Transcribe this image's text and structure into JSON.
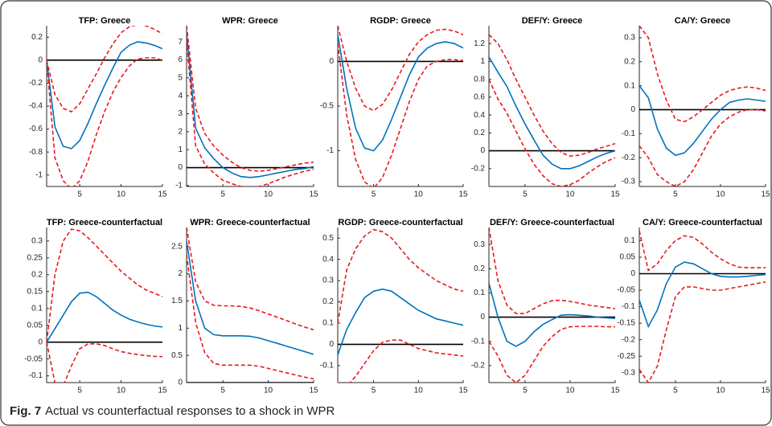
{
  "chart_data": [
    {
      "type": "line",
      "title": "TFP: Greece",
      "x": [
        1,
        2,
        3,
        4,
        5,
        6,
        7,
        8,
        9,
        10,
        11,
        12,
        13,
        14,
        15
      ],
      "xlim": [
        1,
        15
      ],
      "xticks": [
        5,
        10,
        15
      ],
      "ylim": [
        -1.1,
        0.3
      ],
      "yticks": [
        -1,
        -0.8,
        -0.6,
        -0.4,
        -0.2,
        0,
        0.2
      ],
      "reference_line": 0,
      "series": [
        {
          "color": "#0072bd",
          "dashed": false,
          "values": [
            0,
            -0.58,
            -0.75,
            -0.77,
            -0.7,
            -0.55,
            -0.38,
            -0.22,
            -0.07,
            0.07,
            0.13,
            0.16,
            0.15,
            0.13,
            0.1
          ]
        },
        {
          "color": "#e8191e",
          "dashed": true,
          "values": [
            0,
            -0.3,
            -0.42,
            -0.45,
            -0.38,
            -0.25,
            -0.12,
            0.02,
            0.14,
            0.24,
            0.29,
            0.31,
            0.3,
            0.27,
            0.23
          ]
        },
        {
          "color": "#e8191e",
          "dashed": true,
          "values": [
            0,
            -0.85,
            -1.05,
            -1.12,
            -1.05,
            -0.88,
            -0.65,
            -0.45,
            -0.28,
            -0.15,
            -0.05,
            0.01,
            0.02,
            0.02,
            0
          ]
        }
      ]
    },
    {
      "type": "line",
      "title": "WPR: Greece",
      "x": [
        1,
        2,
        3,
        4,
        5,
        6,
        7,
        8,
        9,
        10,
        11,
        12,
        13,
        14,
        15
      ],
      "xlim": [
        1,
        15
      ],
      "xticks": [
        5,
        10,
        15
      ],
      "ylim": [
        -1.05,
        7.9
      ],
      "yticks": [
        -1,
        0,
        1,
        2,
        3,
        4,
        5,
        6,
        7
      ],
      "reference_line": 0,
      "series": [
        {
          "color": "#0072bd",
          "dashed": false,
          "values": [
            7.5,
            2.2,
            1.1,
            0.5,
            0,
            -0.3,
            -0.5,
            -0.55,
            -0.5,
            -0.4,
            -0.3,
            -0.2,
            -0.1,
            -0.05,
            0.05
          ]
        },
        {
          "color": "#e8191e",
          "dashed": true,
          "values": [
            7.9,
            3.3,
            1.9,
            1.2,
            0.7,
            0.3,
            0,
            -0.15,
            -0.2,
            -0.15,
            -0.05,
            0.05,
            0.15,
            0.25,
            0.3
          ]
        },
        {
          "color": "#e8191e",
          "dashed": true,
          "values": [
            7.1,
            1.2,
            0.2,
            -0.3,
            -0.7,
            -0.9,
            -1.05,
            -1.1,
            -1.05,
            -0.9,
            -0.7,
            -0.5,
            -0.35,
            -0.2,
            -0.1
          ]
        }
      ]
    },
    {
      "type": "line",
      "title": "RGDP: Greece",
      "x": [
        1,
        2,
        3,
        4,
        5,
        6,
        7,
        8,
        9,
        10,
        11,
        12,
        13,
        14,
        15
      ],
      "xlim": [
        1,
        15
      ],
      "xticks": [
        5,
        10,
        15
      ],
      "ylim": [
        -1.4,
        0.4
      ],
      "yticks": [
        -1,
        -0.5,
        0
      ],
      "reference_line": 0,
      "series": [
        {
          "color": "#0072bd",
          "dashed": false,
          "values": [
            0.3,
            -0.3,
            -0.75,
            -0.97,
            -1,
            -0.88,
            -0.65,
            -0.4,
            -0.15,
            0.05,
            0.15,
            0.2,
            0.22,
            0.2,
            0.15
          ]
        },
        {
          "color": "#e8191e",
          "dashed": true,
          "values": [
            0.4,
            0,
            -0.3,
            -0.5,
            -0.55,
            -0.48,
            -0.32,
            -0.12,
            0.08,
            0.22,
            0.3,
            0.35,
            0.36,
            0.34,
            0.3
          ]
        },
        {
          "color": "#e8191e",
          "dashed": true,
          "values": [
            0.2,
            -0.6,
            -1.1,
            -1.35,
            -1.42,
            -1.3,
            -1.05,
            -0.75,
            -0.45,
            -0.2,
            -0.05,
            0,
            0.02,
            0.02,
            0.01
          ]
        }
      ]
    },
    {
      "type": "line",
      "title": "DEF/Y: Greece",
      "x": [
        1,
        2,
        3,
        4,
        5,
        6,
        7,
        8,
        9,
        10,
        11,
        12,
        13,
        14,
        15
      ],
      "xlim": [
        1,
        15
      ],
      "xticks": [
        5,
        10,
        15
      ],
      "ylim": [
        -0.4,
        1.4
      ],
      "yticks": [
        -0.2,
        0,
        0.2,
        0.4,
        0.6,
        0.8,
        1,
        1.2
      ],
      "reference_line": 0,
      "series": [
        {
          "color": "#0072bd",
          "dashed": false,
          "values": [
            1.05,
            0.88,
            0.72,
            0.5,
            0.3,
            0.12,
            -0.05,
            -0.15,
            -0.2,
            -0.2,
            -0.17,
            -0.12,
            -0.07,
            -0.03,
            0
          ]
        },
        {
          "color": "#e8191e",
          "dashed": true,
          "values": [
            1.3,
            1.2,
            1.02,
            0.8,
            0.6,
            0.4,
            0.22,
            0.08,
            -0.02,
            -0.06,
            -0.05,
            -0.02,
            0.02,
            0.05,
            0.08
          ]
        },
        {
          "color": "#e8191e",
          "dashed": true,
          "values": [
            0.8,
            0.58,
            0.42,
            0.22,
            0.02,
            -0.15,
            -0.28,
            -0.37,
            -0.4,
            -0.38,
            -0.33,
            -0.25,
            -0.18,
            -0.12,
            -0.08
          ]
        }
      ]
    },
    {
      "type": "line",
      "title": "CA/Y: Greece",
      "x": [
        1,
        2,
        3,
        4,
        5,
        6,
        7,
        8,
        9,
        10,
        11,
        12,
        13,
        14,
        15
      ],
      "xlim": [
        1,
        15
      ],
      "xticks": [
        5,
        10,
        15
      ],
      "ylim": [
        -0.32,
        0.35
      ],
      "yticks": [
        -0.3,
        -0.2,
        -0.1,
        0,
        0.1,
        0.2,
        0.3
      ],
      "reference_line": 0,
      "series": [
        {
          "color": "#0072bd",
          "dashed": false,
          "values": [
            0.1,
            0.05,
            -0.08,
            -0.16,
            -0.19,
            -0.18,
            -0.14,
            -0.09,
            -0.04,
            0,
            0.03,
            0.04,
            0.045,
            0.04,
            0.035
          ]
        },
        {
          "color": "#e8191e",
          "dashed": true,
          "values": [
            0.35,
            0.3,
            0.15,
            0.04,
            -0.04,
            -0.05,
            -0.03,
            0,
            0.03,
            0.06,
            0.08,
            0.09,
            0.095,
            0.09,
            0.08
          ]
        },
        {
          "color": "#e8191e",
          "dashed": true,
          "values": [
            -0.15,
            -0.2,
            -0.27,
            -0.3,
            -0.32,
            -0.3,
            -0.25,
            -0.18,
            -0.11,
            -0.06,
            -0.03,
            -0.01,
            0,
            0,
            -0.005
          ]
        }
      ]
    },
    {
      "type": "line",
      "title": "TFP: Greece-counterfactual",
      "x": [
        1,
        2,
        3,
        4,
        5,
        6,
        7,
        8,
        9,
        10,
        11,
        12,
        13,
        14,
        15
      ],
      "xlim": [
        1,
        15
      ],
      "xticks": [
        5,
        10,
        15
      ],
      "ylim": [
        -0.12,
        0.34
      ],
      "yticks": [
        -0.1,
        -0.05,
        0,
        0.05,
        0.1,
        0.15,
        0.2,
        0.25,
        0.3
      ],
      "reference_line": 0,
      "series": [
        {
          "color": "#0072bd",
          "dashed": false,
          "values": [
            0,
            0.04,
            0.08,
            0.12,
            0.145,
            0.148,
            0.135,
            0.115,
            0.095,
            0.08,
            0.068,
            0.06,
            0.053,
            0.048,
            0.045
          ]
        },
        {
          "color": "#e8191e",
          "dashed": true,
          "values": [
            0,
            0.2,
            0.3,
            0.335,
            0.33,
            0.31,
            0.285,
            0.26,
            0.235,
            0.21,
            0.19,
            0.17,
            0.155,
            0.145,
            0.135
          ]
        },
        {
          "color": "#e8191e",
          "dashed": true,
          "values": [
            0,
            -0.12,
            -0.13,
            -0.07,
            -0.02,
            -0.005,
            -0.005,
            -0.01,
            -0.02,
            -0.028,
            -0.033,
            -0.037,
            -0.04,
            -0.042,
            -0.043
          ]
        }
      ]
    },
    {
      "type": "line",
      "title": "WPR: Greece-counterfactual",
      "x": [
        1,
        2,
        3,
        4,
        5,
        6,
        7,
        8,
        9,
        10,
        11,
        12,
        13,
        14,
        15
      ],
      "xlim": [
        1,
        15
      ],
      "xticks": [
        5,
        10,
        15
      ],
      "ylim": [
        0,
        2.85
      ],
      "yticks": [
        0,
        0.5,
        1,
        1.5,
        2,
        2.5
      ],
      "reference_line": 0,
      "series": [
        {
          "color": "#0072bd",
          "dashed": false,
          "values": [
            2.6,
            1.5,
            1,
            0.88,
            0.86,
            0.86,
            0.86,
            0.85,
            0.82,
            0.77,
            0.72,
            0.67,
            0.62,
            0.57,
            0.52
          ]
        },
        {
          "color": "#e8191e",
          "dashed": true,
          "values": [
            2.85,
            1.85,
            1.5,
            1.42,
            1.41,
            1.41,
            1.4,
            1.37,
            1.32,
            1.26,
            1.2,
            1.14,
            1.08,
            1.02,
            0.97
          ]
        },
        {
          "color": "#e8191e",
          "dashed": true,
          "values": [
            2.35,
            1.1,
            0.55,
            0.35,
            0.32,
            0.32,
            0.32,
            0.32,
            0.3,
            0.26,
            0.22,
            0.18,
            0.14,
            0.1,
            0.07
          ]
        }
      ]
    },
    {
      "type": "line",
      "title": "RGDP: Greece-counterfactual",
      "x": [
        1,
        2,
        3,
        4,
        5,
        6,
        7,
        8,
        9,
        10,
        11,
        12,
        13,
        14,
        15
      ],
      "xlim": [
        1,
        15
      ],
      "xticks": [
        5,
        10,
        15
      ],
      "ylim": [
        -0.18,
        0.55
      ],
      "yticks": [
        -0.1,
        0,
        0.1,
        0.2,
        0.3,
        0.4,
        0.5
      ],
      "reference_line": 0,
      "series": [
        {
          "color": "#0072bd",
          "dashed": false,
          "values": [
            -0.05,
            0.07,
            0.15,
            0.22,
            0.25,
            0.26,
            0.25,
            0.22,
            0.19,
            0.16,
            0.14,
            0.12,
            0.11,
            0.1,
            0.09
          ]
        },
        {
          "color": "#e8191e",
          "dashed": true,
          "values": [
            0.1,
            0.35,
            0.45,
            0.51,
            0.54,
            0.53,
            0.5,
            0.45,
            0.4,
            0.36,
            0.33,
            0.3,
            0.28,
            0.26,
            0.25
          ]
        },
        {
          "color": "#e8191e",
          "dashed": true,
          "values": [
            -0.18,
            -0.2,
            -0.15,
            -0.09,
            -0.03,
            0.01,
            0.02,
            0.02,
            0,
            -0.02,
            -0.03,
            -0.04,
            -0.045,
            -0.05,
            -0.055
          ]
        }
      ]
    },
    {
      "type": "line",
      "title": "DEF/Y: Greece-counterfactual",
      "x": [
        1,
        2,
        3,
        4,
        5,
        6,
        7,
        8,
        9,
        10,
        11,
        12,
        13,
        14,
        15
      ],
      "xlim": [
        1,
        15
      ],
      "xticks": [
        5,
        10,
        15
      ],
      "ylim": [
        -0.27,
        0.37
      ],
      "yticks": [
        -0.2,
        -0.1,
        0,
        0.1,
        0.2,
        0.3
      ],
      "reference_line": 0,
      "series": [
        {
          "color": "#0072bd",
          "dashed": false,
          "values": [
            0.14,
            0,
            -0.1,
            -0.12,
            -0.1,
            -0.06,
            -0.03,
            -0.01,
            0.008,
            0.01,
            0.008,
            0.005,
            0,
            -0.003,
            -0.005
          ]
        },
        {
          "color": "#e8191e",
          "dashed": true,
          "values": [
            0.37,
            0.15,
            0.05,
            0.015,
            0.015,
            0.035,
            0.055,
            0.068,
            0.07,
            0.065,
            0.058,
            0.05,
            0.045,
            0.04,
            0.035
          ]
        },
        {
          "color": "#e8191e",
          "dashed": true,
          "values": [
            -0.1,
            -0.16,
            -0.24,
            -0.27,
            -0.24,
            -0.18,
            -0.12,
            -0.08,
            -0.05,
            -0.04,
            -0.038,
            -0.038,
            -0.038,
            -0.04,
            -0.04
          ]
        }
      ]
    },
    {
      "type": "line",
      "title": "CA/Y: Greece-counterfactual",
      "x": [
        1,
        2,
        3,
        4,
        5,
        6,
        7,
        8,
        9,
        10,
        11,
        12,
        13,
        14,
        15
      ],
      "xlim": [
        1,
        15
      ],
      "xticks": [
        5,
        10,
        15
      ],
      "ylim": [
        -0.33,
        0.14
      ],
      "yticks": [
        -0.3,
        -0.25,
        -0.2,
        -0.15,
        -0.1,
        -0.05,
        0,
        0.05,
        0.1
      ],
      "reference_line": 0,
      "series": [
        {
          "color": "#0072bd",
          "dashed": false,
          "values": [
            -0.08,
            -0.16,
            -0.11,
            -0.03,
            0.02,
            0.035,
            0.03,
            0.015,
            0,
            -0.008,
            -0.01,
            -0.01,
            -0.008,
            -0.005,
            -0.003
          ]
        },
        {
          "color": "#e8191e",
          "dashed": true,
          "values": [
            0.13,
            0.01,
            0.03,
            0.07,
            0.1,
            0.115,
            0.11,
            0.09,
            0.065,
            0.045,
            0.03,
            0.02,
            0.018,
            0.018,
            0.018
          ]
        },
        {
          "color": "#e8191e",
          "dashed": true,
          "values": [
            -0.29,
            -0.33,
            -0.28,
            -0.17,
            -0.07,
            -0.04,
            -0.04,
            -0.045,
            -0.05,
            -0.05,
            -0.045,
            -0.04,
            -0.035,
            -0.03,
            -0.025
          ]
        }
      ]
    }
  ],
  "caption": {
    "label": "Fig. 7",
    "text": "Actual vs counterfactual responses to a shock in WPR"
  }
}
